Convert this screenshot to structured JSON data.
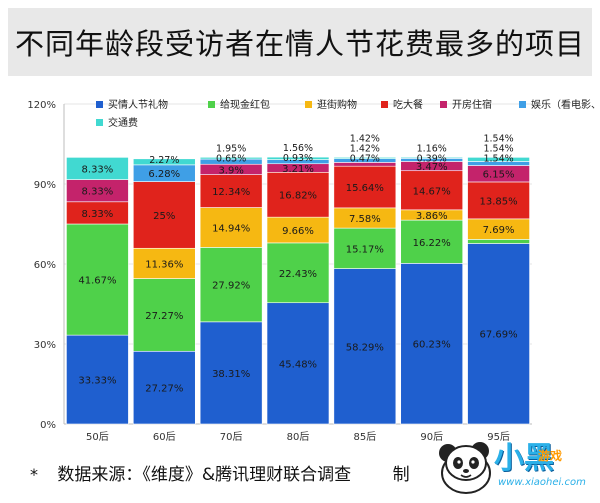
{
  "title": "不同年龄段受访者在情人节花费最多的项目",
  "footer": {
    "star": "*",
    "source": "数据来源：《维度》&腾讯理财联合调查",
    "maker": "制"
  },
  "logo": {
    "name": "小黑",
    "sub": "游戏",
    "url": "www.xiaohei.com"
  },
  "colors": {
    "买情人节礼物": "#1f5fcf",
    "给现金红包": "#4fd14a",
    "逛街购物": "#f6b812",
    "吃大餐": "#e0231c",
    "开房住宿": "#c4236b",
    "娱乐（看电影、唱K、旅游等）": "#3f9fe6",
    "交通费": "#41d9d1"
  },
  "chart_data": {
    "type": "stacked-bar",
    "title": "不同年龄段受访者在情人节花费最多的项目",
    "categories": [
      "50后",
      "60后",
      "70后",
      "80后",
      "85后",
      "90后",
      "95后"
    ],
    "ylim": [
      0,
      120
    ],
    "yticks": [
      "0%",
      "30%",
      "60%",
      "90%",
      "120%"
    ],
    "ytick_values": [
      0,
      30,
      60,
      90,
      120
    ],
    "legend_position": "top",
    "series": [
      {
        "name": "买情人节礼物",
        "values": [
          33.33,
          27.27,
          38.31,
          45.48,
          58.29,
          60.23,
          67.69
        ],
        "labels": [
          "33.33%",
          "27.27%",
          "38.31%",
          "45.48%",
          "58.29%",
          "60.23%",
          "67.69%"
        ]
      },
      {
        "name": "给现金红包",
        "values": [
          41.67,
          27.27,
          27.92,
          22.43,
          15.17,
          16.22,
          1.54
        ],
        "labels": [
          "41.67%",
          "27.27%",
          "27.92%",
          "22.43%",
          "15.17%",
          "16.22%",
          "1.54%"
        ]
      },
      {
        "name": "逛街购物",
        "values": [
          0,
          11.36,
          14.94,
          9.66,
          7.58,
          3.86,
          7.69
        ],
        "labels": [
          "",
          "11.36%",
          "14.94%",
          "9.66%",
          "7.58%",
          "3.86%",
          "7.69%"
        ]
      },
      {
        "name": "吃大餐",
        "values": [
          8.33,
          25,
          12.34,
          16.82,
          15.64,
          14.67,
          13.85
        ],
        "labels": [
          "8.33%",
          "25%",
          "12.34%",
          "16.82%",
          "15.64%",
          "14.67%",
          "13.85%"
        ]
      },
      {
        "name": "开房住宿",
        "values": [
          8.33,
          0,
          3.9,
          3.21,
          1.42,
          3.47,
          6.15
        ],
        "labels": [
          "8.33%",
          "",
          "3.9%",
          "3.21%",
          "1.42%",
          "3.47%",
          "6.15%"
        ]
      },
      {
        "name": "娱乐（看电影、唱K、旅游等）",
        "values": [
          0,
          6.28,
          1.95,
          1.56,
          1.42,
          1.16,
          1.54
        ],
        "labels": [
          "",
          "6.28%",
          "1.95%",
          "1.56%",
          "1.42%",
          "1.16%",
          "1.54%"
        ]
      },
      {
        "name": "交通费",
        "values": [
          8.33,
          2.27,
          0.65,
          0.93,
          0.47,
          0.39,
          1.54
        ],
        "labels": [
          "8.33%",
          "2.27%",
          "0.65%",
          "0.93%",
          "0.47%",
          "0.39%",
          "1.54%"
        ]
      }
    ]
  }
}
